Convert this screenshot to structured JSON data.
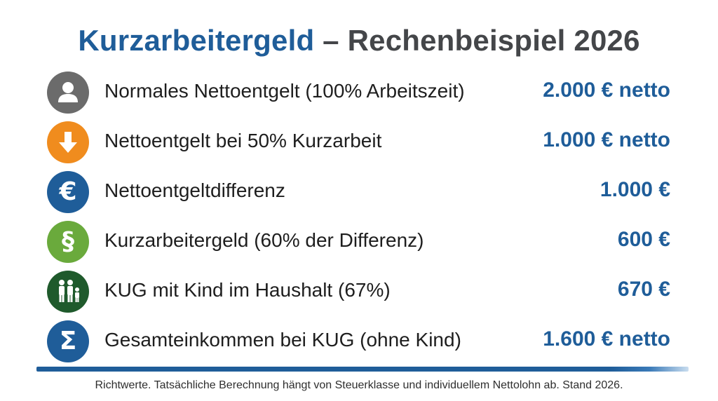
{
  "title": {
    "part1": "Kurzarbeitergeld",
    "dash": " – ",
    "part2": "Rechenbeispiel 2026"
  },
  "colors": {
    "accent_blue": "#1f5d99",
    "title_gray": "#444649",
    "icon_gray": "#6b6b6b",
    "icon_orange": "#f08c1e",
    "icon_blue": "#1f5d99",
    "icon_green": "#6aaa3c",
    "icon_darkgreen": "#1f5a2c"
  },
  "rows": [
    {
      "icon": "user-icon",
      "label": "Normales Nettoentgelt (100% Arbeitszeit)",
      "value": "2.000 € netto"
    },
    {
      "icon": "arrow-down-icon",
      "label": "Nettoentgelt bei 50% Kurzarbeit",
      "value": "1.000 € netto"
    },
    {
      "icon": "euro-icon",
      "glyph": "€",
      "label": "Nettoentgeltdifferenz",
      "value": "1.000 €"
    },
    {
      "icon": "paragraph-icon",
      "glyph": "§",
      "label": "Kurzarbeitergeld (60% der Differenz)",
      "value": "600 €"
    },
    {
      "icon": "family-icon",
      "label": "KUG mit Kind im Haushalt (67%)",
      "value": "670 €"
    },
    {
      "icon": "sigma-icon",
      "glyph": "Σ",
      "label": "Gesamteinkommen bei KUG (ohne Kind)",
      "value": "1.600 € netto"
    }
  ],
  "footnote": "Richtwerte. Tatsächliche Berechnung hängt von Steuerklasse und individuellem Nettolohn ab. Stand 2026."
}
